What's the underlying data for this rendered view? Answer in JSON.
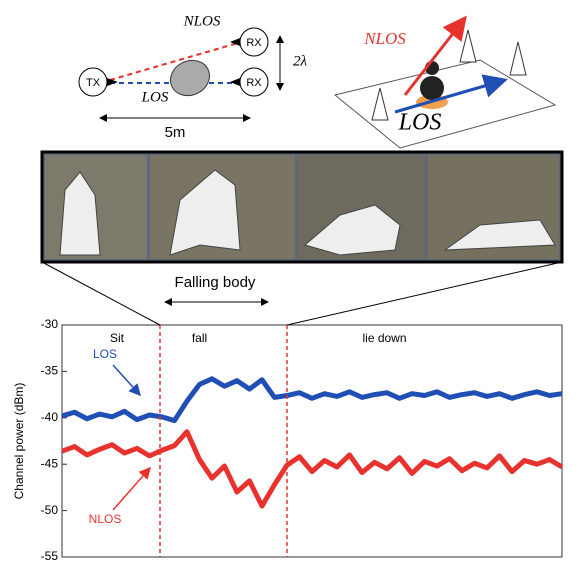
{
  "diagram_left": {
    "nlos": "NLOS",
    "rx_top": "RX",
    "spacing": "2λ",
    "tx": "TX",
    "los": "LOS",
    "rx_bottom": "RX",
    "distance": "5m"
  },
  "diagram_right": {
    "nlos": "NLOS",
    "los": "LOS"
  },
  "photo_caption": "Falling body",
  "chart_data": {
    "type": "line",
    "ylabel": "Channel power (dBm)",
    "ylim": [
      -55,
      -30
    ],
    "yticks": [
      -30,
      -35,
      -40,
      -45,
      -50,
      -55
    ],
    "xlim": [
      0,
      100
    ],
    "phases": [
      {
        "label": "Sit",
        "x": 11
      },
      {
        "label": "fall",
        "x": 27.5
      },
      {
        "label": "lie down",
        "x": 64.5
      }
    ],
    "vlines": [
      19.6,
      45
    ],
    "vline_color": "#e8322d",
    "annotations": [
      {
        "text": "LOS",
        "series": 0
      },
      {
        "text": "NLOS",
        "series": 1
      }
    ],
    "x": [
      0,
      2.5,
      5,
      7.5,
      10,
      12.5,
      15,
      17.5,
      20,
      22.5,
      25,
      27.5,
      30,
      32.5,
      35,
      37.5,
      40,
      42.5,
      45,
      47.5,
      50,
      52.5,
      55,
      57.5,
      60,
      62.5,
      65,
      67.5,
      70,
      72.5,
      75,
      77.5,
      80,
      82.5,
      85,
      87.5,
      90,
      92.5,
      95,
      97.5,
      100
    ],
    "series": [
      {
        "name": "LOS",
        "color": "#1f4fb4",
        "values": [
          -39.8,
          -39.4,
          -40.1,
          -39.6,
          -39.9,
          -39.3,
          -40.2,
          -39.7,
          -39.9,
          -40.3,
          -38.2,
          -36.4,
          -35.8,
          -36.6,
          -36.0,
          -36.9,
          -35.9,
          -37.8,
          -37.6,
          -37.3,
          -37.9,
          -37.4,
          -37.7,
          -37.2,
          -37.8,
          -37.5,
          -37.3,
          -37.9,
          -37.4,
          -37.6,
          -37.2,
          -37.8,
          -37.5,
          -37.3,
          -37.7,
          -37.4,
          -37.9,
          -37.5,
          -37.2,
          -37.6,
          -37.4
        ]
      },
      {
        "name": "NLOS",
        "color": "#e8322d",
        "values": [
          -43.6,
          -43.1,
          -44.0,
          -43.4,
          -42.9,
          -43.8,
          -43.3,
          -44.1,
          -43.5,
          -43.0,
          -41.5,
          -44.5,
          -46.5,
          -45.2,
          -48.0,
          -46.8,
          -49.5,
          -47.2,
          -45.1,
          -44.2,
          -45.8,
          -44.6,
          -45.3,
          -44.0,
          -45.9,
          -44.8,
          -45.5,
          -44.3,
          -46.0,
          -44.7,
          -45.2,
          -44.4,
          -45.7,
          -44.9,
          -45.4,
          -44.1,
          -45.8,
          -44.6,
          -45.0,
          -44.5,
          -45.3
        ]
      }
    ]
  }
}
